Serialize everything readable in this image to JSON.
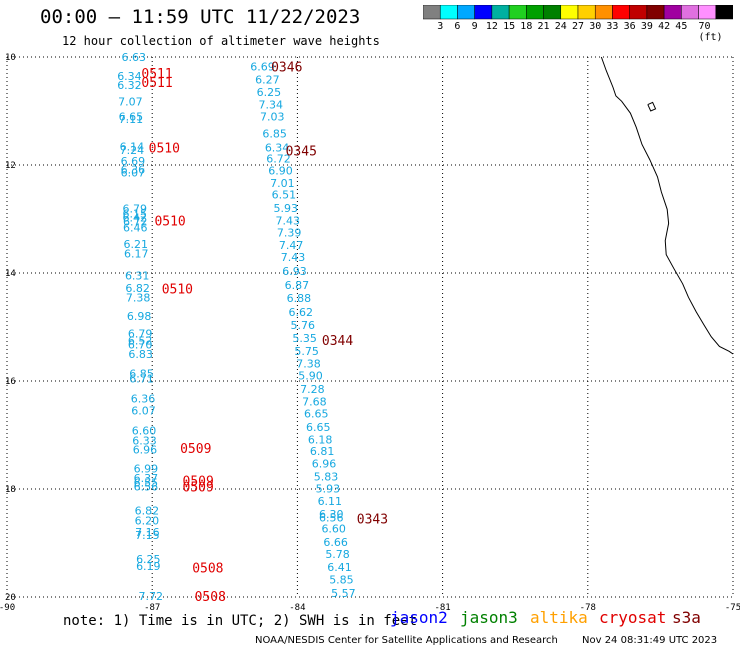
{
  "header": {
    "title": "00:00 – 11:59 UTC 11/22/2023",
    "subtitle": "12 hour collection of altimeter wave heights"
  },
  "legend": {
    "swatches": [
      "#808080",
      "#00ffff",
      "#00a8ff",
      "#0000ff",
      "#00b0a0",
      "#20d020",
      "#00a000",
      "#008000",
      "#ffff00",
      "#ffd000",
      "#ff9000",
      "#ff0000",
      "#c00000",
      "#800000",
      "#a000a0",
      "#e070e0",
      "#ff90ff",
      "#000000"
    ],
    "labels": [
      "3",
      "6",
      "9",
      "12",
      "15",
      "18",
      "21",
      "24",
      "27",
      "30",
      "33",
      "36",
      "39",
      "42",
      "45",
      "70 (ft)"
    ]
  },
  "axes": {
    "lat_labels": [
      "10",
      "12",
      "14",
      "16",
      "18",
      "20"
    ],
    "lon_labels": [
      "-90",
      "-87",
      "-84",
      "-81",
      "-78",
      "-75"
    ]
  },
  "tracks": [
    {
      "name": "west",
      "color": "#16a8e0",
      "points": [
        {
          "lat": 10.0,
          "lon": -87.38,
          "v": "6.63"
        },
        {
          "lat": 10.35,
          "lon": -87.47,
          "v": "6.34"
        },
        {
          "lat": 10.52,
          "lon": -87.47,
          "v": "6.32"
        },
        {
          "lat": 10.82,
          "lon": -87.45,
          "v": "7.07"
        },
        {
          "lat": 11.1,
          "lon": -87.44,
          "v": "6.65"
        },
        {
          "lat": 11.15,
          "lon": -87.44,
          "v": "7.11"
        },
        {
          "lat": 11.66,
          "lon": -87.42,
          "v": "6.14"
        },
        {
          "lat": 11.72,
          "lon": -87.42,
          "v": "7.24"
        },
        {
          "lat": 11.93,
          "lon": -87.4,
          "v": "6.69"
        },
        {
          "lat": 12.08,
          "lon": -87.4,
          "v": "6.36"
        },
        {
          "lat": 12.14,
          "lon": -87.4,
          "v": "6.07"
        },
        {
          "lat": 12.81,
          "lon": -87.36,
          "v": "6.79"
        },
        {
          "lat": 12.9,
          "lon": -87.36,
          "v": "6.15"
        },
        {
          "lat": 12.97,
          "lon": -87.36,
          "v": "6.42"
        },
        {
          "lat": 13.05,
          "lon": -87.35,
          "v": "6.72"
        },
        {
          "lat": 13.16,
          "lon": -87.35,
          "v": "6.46"
        },
        {
          "lat": 13.46,
          "lon": -87.34,
          "v": "6.21"
        },
        {
          "lat": 13.64,
          "lon": -87.33,
          "v": "6.17"
        },
        {
          "lat": 14.05,
          "lon": -87.31,
          "v": "6.31"
        },
        {
          "lat": 14.28,
          "lon": -87.3,
          "v": "6.82"
        },
        {
          "lat": 14.45,
          "lon": -87.29,
          "v": "7.38"
        },
        {
          "lat": 14.8,
          "lon": -87.27,
          "v": "6.98"
        },
        {
          "lat": 15.12,
          "lon": -87.25,
          "v": "6.79"
        },
        {
          "lat": 15.25,
          "lon": -87.25,
          "v": "6.52"
        },
        {
          "lat": 15.32,
          "lon": -87.25,
          "v": "6.70"
        },
        {
          "lat": 15.5,
          "lon": -87.24,
          "v": "6.83"
        },
        {
          "lat": 15.86,
          "lon": -87.22,
          "v": "6.85"
        },
        {
          "lat": 15.95,
          "lon": -87.22,
          "v": "6.71"
        },
        {
          "lat": 16.32,
          "lon": -87.19,
          "v": "6.36"
        },
        {
          "lat": 16.55,
          "lon": -87.18,
          "v": "6.07"
        },
        {
          "lat": 16.92,
          "lon": -87.17,
          "v": "6.60"
        },
        {
          "lat": 17.1,
          "lon": -87.16,
          "v": "6.33"
        },
        {
          "lat": 17.27,
          "lon": -87.15,
          "v": "6.96"
        },
        {
          "lat": 17.62,
          "lon": -87.13,
          "v": "6.99"
        },
        {
          "lat": 17.8,
          "lon": -87.13,
          "v": "6.37"
        },
        {
          "lat": 17.88,
          "lon": -87.13,
          "v": "6.55"
        },
        {
          "lat": 17.95,
          "lon": -87.13,
          "v": "6.56"
        },
        {
          "lat": 18.4,
          "lon": -87.11,
          "v": "6.82"
        },
        {
          "lat": 18.58,
          "lon": -87.11,
          "v": "6.20"
        },
        {
          "lat": 18.8,
          "lon": -87.1,
          "v": "7.16"
        },
        {
          "lat": 18.85,
          "lon": -87.1,
          "v": "7.15"
        },
        {
          "lat": 19.3,
          "lon": -87.08,
          "v": "6.25"
        },
        {
          "lat": 19.43,
          "lon": -87.08,
          "v": "6.19"
        },
        {
          "lat": 19.98,
          "lon": -87.03,
          "v": "7.72"
        }
      ]
    },
    {
      "name": "east",
      "color": "#16a8e0",
      "points": [
        {
          "lat": 10.18,
          "lon": -84.72,
          "v": "6.69"
        },
        {
          "lat": 10.42,
          "lon": -84.62,
          "v": "6.27"
        },
        {
          "lat": 10.65,
          "lon": -84.59,
          "v": "6.25"
        },
        {
          "lat": 10.88,
          "lon": -84.55,
          "v": "7.34"
        },
        {
          "lat": 11.1,
          "lon": -84.52,
          "v": "7.03"
        },
        {
          "lat": 11.42,
          "lon": -84.47,
          "v": "6.85"
        },
        {
          "lat": 11.68,
          "lon": -84.42,
          "v": "6.34"
        },
        {
          "lat": 11.88,
          "lon": -84.39,
          "v": "6.72"
        },
        {
          "lat": 12.1,
          "lon": -84.35,
          "v": "6.90"
        },
        {
          "lat": 12.33,
          "lon": -84.31,
          "v": "7.01"
        },
        {
          "lat": 12.55,
          "lon": -84.28,
          "v": "6.51"
        },
        {
          "lat": 12.8,
          "lon": -84.24,
          "v": "5.93"
        },
        {
          "lat": 13.03,
          "lon": -84.2,
          "v": "7.43"
        },
        {
          "lat": 13.25,
          "lon": -84.17,
          "v": "7.39"
        },
        {
          "lat": 13.48,
          "lon": -84.13,
          "v": "7.47"
        },
        {
          "lat": 13.7,
          "lon": -84.09,
          "v": "7.43"
        },
        {
          "lat": 13.96,
          "lon": -84.06,
          "v": "6.93"
        },
        {
          "lat": 14.22,
          "lon": -84.01,
          "v": "6.87"
        },
        {
          "lat": 14.46,
          "lon": -83.97,
          "v": "6.88"
        },
        {
          "lat": 14.72,
          "lon": -83.93,
          "v": "6.62"
        },
        {
          "lat": 14.96,
          "lon": -83.89,
          "v": "5.76"
        },
        {
          "lat": 15.2,
          "lon": -83.85,
          "v": "5.35"
        },
        {
          "lat": 15.44,
          "lon": -83.81,
          "v": "5.75"
        },
        {
          "lat": 15.68,
          "lon": -83.77,
          "v": "7.38"
        },
        {
          "lat": 15.9,
          "lon": -83.73,
          "v": "5.90"
        },
        {
          "lat": 16.15,
          "lon": -83.69,
          "v": "7.28"
        },
        {
          "lat": 16.38,
          "lon": -83.65,
          "v": "7.68"
        },
        {
          "lat": 16.6,
          "lon": -83.61,
          "v": "6.65"
        },
        {
          "lat": 16.85,
          "lon": -83.57,
          "v": "6.65"
        },
        {
          "lat": 17.08,
          "lon": -83.53,
          "v": "6.18"
        },
        {
          "lat": 17.3,
          "lon": -83.49,
          "v": "6.81"
        },
        {
          "lat": 17.53,
          "lon": -83.45,
          "v": "6.96"
        },
        {
          "lat": 17.77,
          "lon": -83.41,
          "v": "5.83"
        },
        {
          "lat": 17.99,
          "lon": -83.37,
          "v": "5.93"
        },
        {
          "lat": 18.22,
          "lon": -83.33,
          "v": "6.11"
        },
        {
          "lat": 18.46,
          "lon": -83.3,
          "v": "6.30"
        },
        {
          "lat": 18.53,
          "lon": -83.3,
          "v": "6.56"
        },
        {
          "lat": 18.73,
          "lon": -83.25,
          "v": "6.60"
        },
        {
          "lat": 18.98,
          "lon": -83.21,
          "v": "6.66"
        },
        {
          "lat": 19.2,
          "lon": -83.17,
          "v": "5.78"
        },
        {
          "lat": 19.44,
          "lon": -83.13,
          "v": "6.41"
        },
        {
          "lat": 19.68,
          "lon": -83.09,
          "v": "5.85"
        },
        {
          "lat": 19.93,
          "lon": -83.05,
          "v": "5.57"
        }
      ]
    }
  ],
  "time_labels": [
    {
      "lat": 10.3,
      "lon": -86.9,
      "t": "0511",
      "color": "#e00000"
    },
    {
      "lat": 10.46,
      "lon": -86.9,
      "t": "0511",
      "color": "#e00000"
    },
    {
      "lat": 11.68,
      "lon": -86.75,
      "t": "0510",
      "color": "#e00000"
    },
    {
      "lat": 13.03,
      "lon": -86.63,
      "t": "0510",
      "color": "#e00000"
    },
    {
      "lat": 14.29,
      "lon": -86.48,
      "t": "0510",
      "color": "#e00000"
    },
    {
      "lat": 17.24,
      "lon": -86.1,
      "t": "0509",
      "color": "#e00000"
    },
    {
      "lat": 17.84,
      "lon": -86.05,
      "t": "0509",
      "color": "#e00000"
    },
    {
      "lat": 17.95,
      "lon": -86.05,
      "t": "0509",
      "color": "#e00000"
    },
    {
      "lat": 19.45,
      "lon": -85.85,
      "t": "0508",
      "color": "#e00000"
    },
    {
      "lat": 19.98,
      "lon": -85.8,
      "t": "0508",
      "color": "#e00000"
    },
    {
      "lat": 10.18,
      "lon": -84.22,
      "t": "0346",
      "color": "#800000"
    },
    {
      "lat": 11.73,
      "lon": -83.92,
      "t": "0345",
      "color": "#800000"
    },
    {
      "lat": 15.24,
      "lon": -83.17,
      "t": "0344",
      "color": "#800000"
    },
    {
      "lat": 18.55,
      "lon": -82.45,
      "t": "0343",
      "color": "#800000"
    }
  ],
  "coastline": [
    [
      -77.72,
      10.0
    ],
    [
      -77.62,
      10.25
    ],
    [
      -77.48,
      10.56
    ],
    [
      -77.42,
      10.72
    ],
    [
      -77.3,
      10.82
    ],
    [
      -77.12,
      11.04
    ],
    [
      -77.0,
      11.3
    ],
    [
      -76.88,
      11.62
    ],
    [
      -76.72,
      11.9
    ],
    [
      -76.56,
      12.22
    ],
    [
      -76.48,
      12.5
    ],
    [
      -76.36,
      12.82
    ],
    [
      -76.33,
      13.08
    ],
    [
      -76.4,
      13.4
    ],
    [
      -76.38,
      13.66
    ],
    [
      -76.22,
      13.92
    ],
    [
      -76.04,
      14.2
    ],
    [
      -75.92,
      14.45
    ],
    [
      -75.76,
      14.72
    ],
    [
      -75.6,
      14.96
    ],
    [
      -75.45,
      15.18
    ],
    [
      -75.28,
      15.36
    ],
    [
      -75.08,
      15.45
    ],
    [
      -75.0,
      15.5
    ]
  ],
  "island": [
    [
      -76.76,
      10.88
    ],
    [
      -76.66,
      10.84
    ],
    [
      -76.6,
      10.96
    ],
    [
      -76.7,
      11.0
    ],
    [
      -76.76,
      10.88
    ]
  ],
  "footer": {
    "note": "note: 1) Time is in UTC; 2) SWH is in feet",
    "satellites": [
      {
        "name": "jason2",
        "color": "#0000ff"
      },
      {
        "name": "jason3",
        "color": "#008000"
      },
      {
        "name": "altika",
        "color": "#ffa000"
      },
      {
        "name": "cryosat",
        "color": "#e00000"
      },
      {
        "name": "s3a",
        "color": "#800000"
      }
    ],
    "credit": "NOAA/NESDIS Center for Satellite Applications and Research",
    "timestamp": "Nov 24 08:31:49 UTC 2023"
  }
}
